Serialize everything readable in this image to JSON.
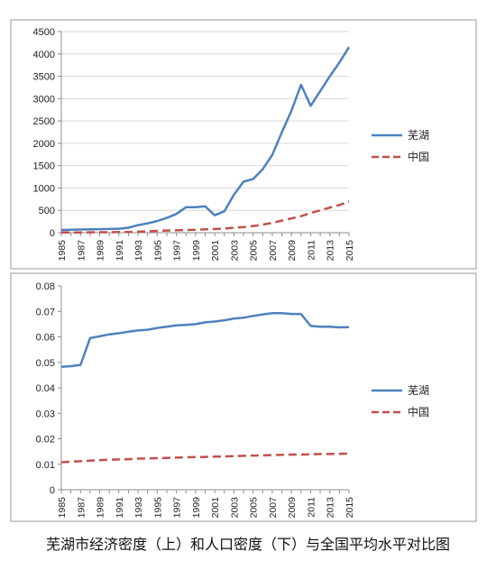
{
  "caption": "芜湖市经济密度（上）和人口密度（下）与全国平均水平对比图",
  "colors": {
    "wuhu": "#4F81BD",
    "china": "#C0504D",
    "axis": "#8c8c8c",
    "grid": "#d9d9d9",
    "frame": "#999999"
  },
  "chart_data": [
    {
      "type": "line",
      "title": "",
      "xlabel": "",
      "ylabel": "",
      "ylim": [
        0,
        4500
      ],
      "yticks": [
        "0",
        "500",
        "1000",
        "1500",
        "2000",
        "2500",
        "3000",
        "3500",
        "4000",
        "4500"
      ],
      "ytick_values": [
        0,
        500,
        1000,
        1500,
        2000,
        2500,
        3000,
        3500,
        4000,
        4500
      ],
      "xtick_labels": [
        "1985",
        "1987",
        "1989",
        "1991",
        "1993",
        "1995",
        "1997",
        "1999",
        "2001",
        "2003",
        "2005",
        "2007",
        "2009",
        "2011",
        "2013",
        "2015"
      ],
      "grid": "horizontal",
      "legend": "right",
      "x": [
        1985,
        1986,
        1987,
        1988,
        1989,
        1990,
        1991,
        1992,
        1993,
        1994,
        1995,
        1996,
        1997,
        1998,
        1999,
        2000,
        2001,
        2002,
        2003,
        2004,
        2005,
        2006,
        2007,
        2008,
        2009,
        2010,
        2011,
        2012,
        2013,
        2014,
        2015
      ],
      "series": [
        {
          "name": "芜湖",
          "style": "solid",
          "values": [
            60,
            65,
            70,
            75,
            78,
            82,
            88,
            110,
            170,
            210,
            260,
            330,
            420,
            570,
            570,
            590,
            390,
            480,
            850,
            1140,
            1200,
            1420,
            1740,
            2250,
            2730,
            3310,
            2840,
            3170,
            3500,
            3810,
            4150
          ]
        },
        {
          "name": "中国",
          "style": "dashed",
          "values": [
            5,
            6,
            7,
            9,
            10,
            11,
            14,
            17,
            22,
            30,
            40,
            48,
            55,
            60,
            65,
            75,
            80,
            90,
            110,
            125,
            150,
            180,
            220,
            270,
            320,
            370,
            440,
            500,
            560,
            620,
            700
          ]
        }
      ]
    },
    {
      "type": "line",
      "title": "",
      "xlabel": "",
      "ylabel": "",
      "ylim": [
        0,
        0.08
      ],
      "yticks": [
        "0",
        "0.01",
        "0.02",
        "0.03",
        "0.04",
        "0.05",
        "0.06",
        "0.07",
        "0.08"
      ],
      "ytick_values": [
        0,
        0.01,
        0.02,
        0.03,
        0.04,
        0.05,
        0.06,
        0.07,
        0.08
      ],
      "xtick_labels": [
        "1985",
        "1987",
        "1989",
        "1991",
        "1993",
        "1995",
        "1997",
        "1999",
        "2001",
        "2003",
        "2005",
        "2007",
        "2009",
        "2011",
        "2013",
        "2015"
      ],
      "grid": "none",
      "legend": "right",
      "x": [
        1985,
        1986,
        1987,
        1988,
        1989,
        1990,
        1991,
        1992,
        1993,
        1994,
        1995,
        1996,
        1997,
        1998,
        1999,
        2000,
        2001,
        2002,
        2003,
        2004,
        2005,
        2006,
        2007,
        2008,
        2009,
        2010,
        2011,
        2012,
        2013,
        2014,
        2015
      ],
      "series": [
        {
          "name": "芜湖",
          "style": "solid",
          "values": [
            0.0482,
            0.0485,
            0.049,
            0.0595,
            0.0602,
            0.061,
            0.0614,
            0.062,
            0.0625,
            0.0628,
            0.0635,
            0.064,
            0.0645,
            0.0647,
            0.065,
            0.0657,
            0.066,
            0.0665,
            0.0672,
            0.0675,
            0.0682,
            0.0688,
            0.0693,
            0.0693,
            0.069,
            0.069,
            0.0643,
            0.064,
            0.064,
            0.0637,
            0.0638
          ]
        },
        {
          "name": "中国",
          "style": "dashed",
          "values": [
            0.0108,
            0.011,
            0.0112,
            0.0114,
            0.0116,
            0.0118,
            0.0119,
            0.012,
            0.0122,
            0.0123,
            0.0124,
            0.0125,
            0.0126,
            0.0127,
            0.0128,
            0.0129,
            0.013,
            0.0131,
            0.0132,
            0.0133,
            0.0134,
            0.0135,
            0.0136,
            0.0137,
            0.0138,
            0.0138,
            0.0139,
            0.014,
            0.014,
            0.0141,
            0.0142
          ]
        }
      ]
    }
  ]
}
